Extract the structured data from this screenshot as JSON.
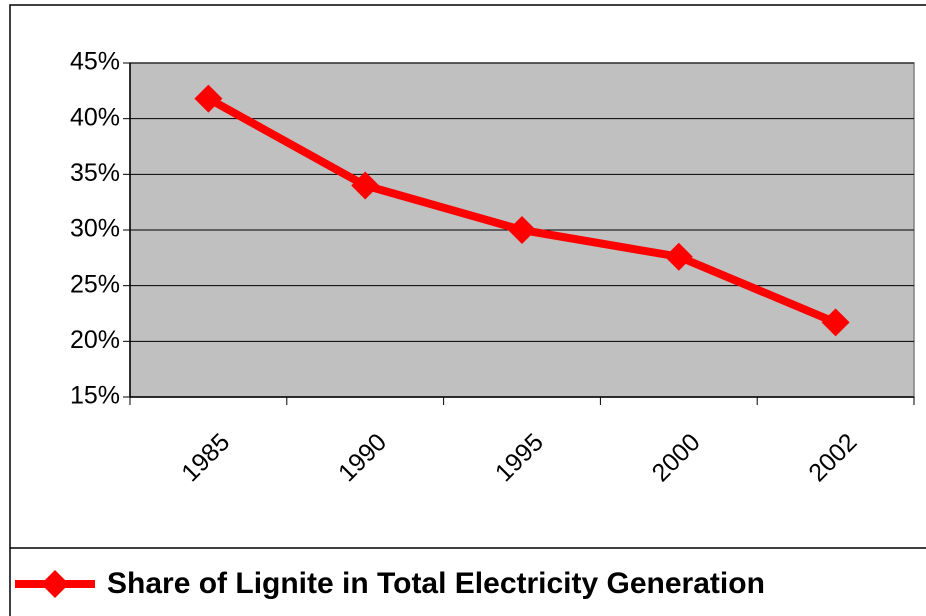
{
  "chart_data": {
    "type": "line",
    "categories": [
      "1985",
      "1990",
      "1995",
      "2000",
      "2002"
    ],
    "series": [
      {
        "name": "Share of Lignite in Total Electricity Generation",
        "color": "#ff0000",
        "values": [
          41.8,
          34.0,
          30.0,
          27.6,
          21.7
        ]
      }
    ],
    "ylim": [
      15,
      45
    ],
    "yticks": [
      {
        "value": 15,
        "label": "15%"
      },
      {
        "value": 20,
        "label": "20%"
      },
      {
        "value": 25,
        "label": "25%"
      },
      {
        "value": 30,
        "label": "30%"
      },
      {
        "value": 35,
        "label": "35%"
      },
      {
        "value": 40,
        "label": "40%"
      },
      {
        "value": 45,
        "label": "45%"
      }
    ],
    "grid": true,
    "plot_background": "#c0c0c0",
    "legend": "bottom"
  }
}
